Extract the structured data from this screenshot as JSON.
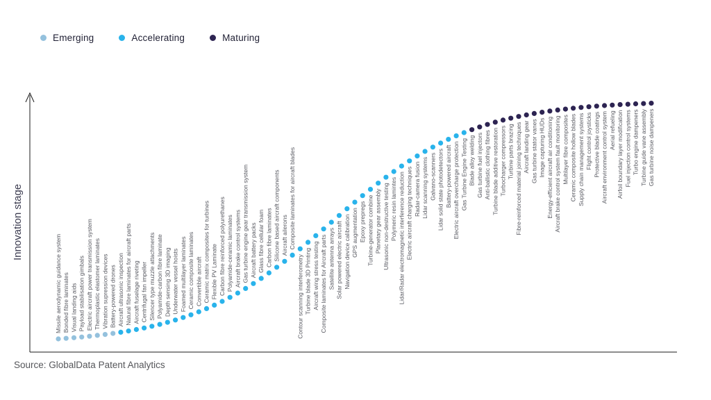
{
  "legend": [
    {
      "label": "Emerging",
      "color": "#94C1DD"
    },
    {
      "label": "Accelerating",
      "color": "#29B3EB"
    },
    {
      "label": "Maturing",
      "color": "#2D2452"
    }
  ],
  "y_axis_label": "Innovation stage",
  "source": "Source: GlobalData Patent Analytics",
  "chart_data": {
    "type": "scatter",
    "title": "",
    "xlabel": "",
    "ylabel": "Innovation stage",
    "legend_position": "top-left",
    "grid": false,
    "curve_shape": "s-curve (logistic, rank order left-to-right = increasing innovation stage)",
    "stage_colors": {
      "Emerging": "#94C1DD",
      "Accelerating": "#29B3EB",
      "Maturing": "#2D2452"
    },
    "items": [
      {
        "label": "Missile aerodynamic guidance system",
        "stage": "Emerging"
      },
      {
        "label": "Bonded fibre laminates",
        "stage": "Emerging"
      },
      {
        "label": "Visual landing aids",
        "stage": "Emerging"
      },
      {
        "label": "Payload stabilisation gimbals",
        "stage": "Emerging"
      },
      {
        "label": "Electric aircraft power transmission system",
        "stage": "Emerging"
      },
      {
        "label": "Thermoplastic elastomer laminates",
        "stage": "Emerging"
      },
      {
        "label": "Vibration supression devices",
        "stage": "Emerging"
      },
      {
        "label": "Battery-powered drones",
        "stage": "Emerging"
      },
      {
        "label": "Aircraft ultrasonic inspection",
        "stage": "Accelerating"
      },
      {
        "label": "Natural fibre laminates for aircraft parts",
        "stage": "Accelerating"
      },
      {
        "label": "Aircraft fuselage riveting",
        "stage": "Accelerating"
      },
      {
        "label": "Centrifugal fan impeller",
        "stage": "Accelerating"
      },
      {
        "label": "Silencer type muzzle attachments",
        "stage": "Accelerating"
      },
      {
        "label": "Polyamide-carbon fibre laminate",
        "stage": "Accelerating"
      },
      {
        "label": "Depth sensing 3D imaging",
        "stage": "Accelerating"
      },
      {
        "label": "Underwater vessel hoists",
        "stage": "Accelerating"
      },
      {
        "label": "Foamed multilayer laminates",
        "stage": "Accelerating"
      },
      {
        "label": "Ceramic composite laminates",
        "stage": "Accelerating"
      },
      {
        "label": "Convertible aircraft",
        "stage": "Accelerating"
      },
      {
        "label": "Ceramic matrix composites for turbines",
        "stage": "Accelerating"
      },
      {
        "label": "Flexible PV Laminate",
        "stage": "Accelerating"
      },
      {
        "label": "Carbon fibre reinforced polyurethanes",
        "stage": "Accelerating"
      },
      {
        "label": "Polyamide-ceramic laminates",
        "stage": "Accelerating"
      },
      {
        "label": "Aircraft brake control systems",
        "stage": "Accelerating"
      },
      {
        "label": "Gas turbine engine gear transmission system",
        "stage": "Accelerating"
      },
      {
        "label": "Aircraft battery packs",
        "stage": "Accelerating"
      },
      {
        "label": "Glass fibre cellular foam",
        "stage": "Accelerating"
      },
      {
        "label": "Carbon fibre laminates",
        "stage": "Accelerating"
      },
      {
        "label": "Silicone based aircraft components",
        "stage": "Accelerating"
      },
      {
        "label": "Aircraft ailerons",
        "stage": "Accelerating"
      },
      {
        "label": "Composite laminates for aircraft blades",
        "stage": "Accelerating"
      },
      {
        "label": "Contour scanning interferometry",
        "stage": "Accelerating"
      },
      {
        "label": "Turbine blade 3D Printing",
        "stage": "Accelerating"
      },
      {
        "label": "Aircraft wing stress testing",
        "stage": "Accelerating"
      },
      {
        "label": "Composite laminates for Aircraft parts",
        "stage": "Accelerating"
      },
      {
        "label": "Satellite antenna arrays",
        "stage": "Accelerating"
      },
      {
        "label": "Solar powered electric aircraft",
        "stage": "Accelerating"
      },
      {
        "label": "Navigation device calibration",
        "stage": "Accelerating"
      },
      {
        "label": "GPS augmentation",
        "stage": "Accelerating"
      },
      {
        "label": "Epoxy prepregs",
        "stage": "Accelerating"
      },
      {
        "label": "Turbine-generator combine",
        "stage": "Accelerating"
      },
      {
        "label": "Planetary gear assembly",
        "stage": "Accelerating"
      },
      {
        "label": "Ultrasonic non-destructive testing",
        "stage": "Accelerating"
      },
      {
        "label": "Polymeric resin lamintes",
        "stage": "Accelerating"
      },
      {
        "label": "Lidar/Radar electromagnetic interference reduction",
        "stage": "Accelerating"
      },
      {
        "label": "Electric aircraft charging techniques",
        "stage": "Accelerating"
      },
      {
        "label": "Radar-camera fusion",
        "stage": "Accelerating"
      },
      {
        "label": "Lidar scanning systems",
        "stage": "Accelerating"
      },
      {
        "label": "Galvano-scanners",
        "stage": "Accelerating"
      },
      {
        "label": "Lidar solid state photodetectors",
        "stage": "Accelerating"
      },
      {
        "label": "Battery-powered aircraft",
        "stage": "Accelerating"
      },
      {
        "label": "Electric aircraft overcharge protection",
        "stage": "Accelerating"
      },
      {
        "label": "Gas Turbine Engine Testing",
        "stage": "Accelerating"
      },
      {
        "label": "Blade alloy welding",
        "stage": "Maturing"
      },
      {
        "label": "Gas turbine fuel injectors",
        "stage": "Maturing"
      },
      {
        "label": "Anti-ballistic clothing fibres",
        "stage": "Maturing"
      },
      {
        "label": "Turbine blade additive restoration",
        "stage": "Maturing"
      },
      {
        "label": "Turbocharger compressors",
        "stage": "Maturing"
      },
      {
        "label": "Turbine parts brazing",
        "stage": "Maturing"
      },
      {
        "label": "Fibre-reinforced material joining techniques",
        "stage": "Maturing"
      },
      {
        "label": "Aircraft landing gear",
        "stage": "Maturing"
      },
      {
        "label": "Gas turbine stator vanes",
        "stage": "Maturing"
      },
      {
        "label": "Image capturing HUDs",
        "stage": "Maturing"
      },
      {
        "label": "Energy-efficient aircraft air conditioning",
        "stage": "Maturing"
      },
      {
        "label": "Aircraft brake control system fault monitoring",
        "stage": "Maturing"
      },
      {
        "label": "Multilayer fibre composites",
        "stage": "Maturing"
      },
      {
        "label": "Ceramic composite hollow blades",
        "stage": "Maturing"
      },
      {
        "label": "Supply chain management systems",
        "stage": "Maturing"
      },
      {
        "label": "Flight control joysticks",
        "stage": "Maturing"
      },
      {
        "label": "Protective blade coatings",
        "stage": "Maturing"
      },
      {
        "label": "Aircraft environment control system",
        "stage": "Maturing"
      },
      {
        "label": "Aerial refueling",
        "stage": "Maturing"
      },
      {
        "label": "Airfoil boundary layer modification",
        "stage": "Maturing"
      },
      {
        "label": "Fuel injection control systems",
        "stage": "Maturing"
      },
      {
        "label": "Turbo engine dampeners",
        "stage": "Maturing"
      },
      {
        "label": "Turbine guide vane assembly",
        "stage": "Maturing"
      },
      {
        "label": "Gas turbine noise dampeners",
        "stage": "Maturing"
      }
    ]
  }
}
